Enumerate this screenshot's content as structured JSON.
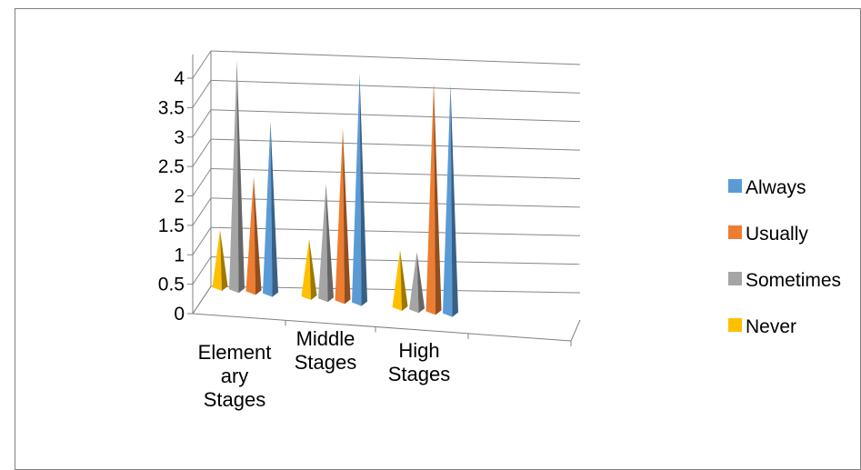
{
  "chart_data": {
    "type": "bar",
    "subtype": "3d-cone",
    "title": "",
    "xlabel": "",
    "ylabel": "",
    "ylim": [
      0,
      4
    ],
    "yticks": [
      "0",
      "0.5",
      "1",
      "1.5",
      "2",
      "2.5",
      "3",
      "3.5",
      "4"
    ],
    "grid": true,
    "legend_position": "right",
    "categories": [
      [
        "Element",
        "ary",
        "Stages"
      ],
      [
        "Middle",
        "Stages"
      ],
      [
        "High",
        "Stages"
      ]
    ],
    "series": [
      {
        "name": "Never",
        "color": "#FFC000",
        "values": [
          1,
          1,
          1
        ]
      },
      {
        "name": "Sometimes",
        "color": "#A5A5A5",
        "values": [
          4,
          2,
          1
        ]
      },
      {
        "name": "Usually",
        "color": "#ED7D31",
        "values": [
          2,
          3,
          4
        ]
      },
      {
        "name": "Always",
        "color": "#5B9BD5",
        "values": [
          3,
          4,
          4
        ]
      }
    ],
    "legend_order": [
      "Always",
      "Usually",
      "Sometimes",
      "Never"
    ]
  }
}
